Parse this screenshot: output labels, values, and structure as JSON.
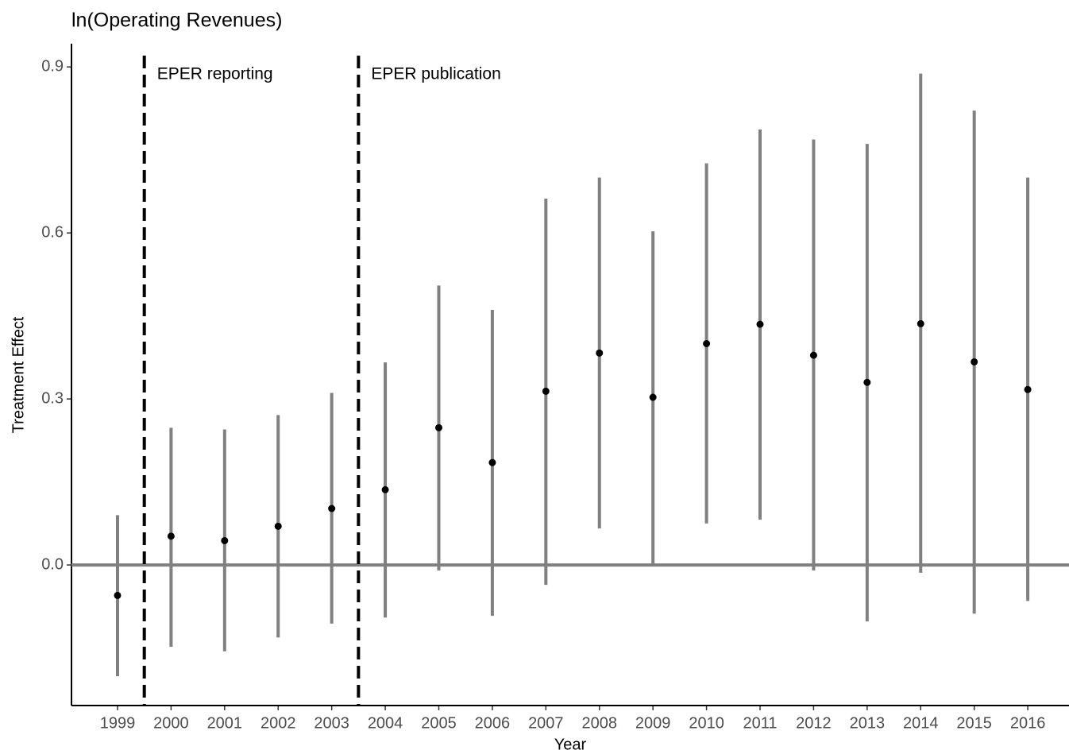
{
  "chart_data": {
    "type": "errorbar",
    "title": "ln(Operating Revenues)",
    "x_label": "Year",
    "y_label": "Treatment Effect",
    "x": [
      1999,
      2000,
      2001,
      2002,
      2003,
      2004,
      2005,
      2006,
      2007,
      2008,
      2009,
      2010,
      2011,
      2012,
      2013,
      2014,
      2015,
      2016
    ],
    "values": [
      -0.055,
      0.052,
      0.044,
      0.07,
      0.102,
      0.136,
      0.248,
      0.185,
      0.314,
      0.383,
      0.303,
      0.4,
      0.435,
      0.379,
      0.33,
      0.436,
      0.367,
      0.317
    ],
    "lower": [
      -0.201,
      -0.148,
      -0.156,
      -0.131,
      -0.106,
      -0.095,
      -0.01,
      -0.092,
      -0.036,
      0.066,
      0.0,
      0.075,
      0.082,
      -0.01,
      -0.102,
      -0.014,
      -0.088,
      -0.065
    ],
    "upper": [
      0.09,
      0.248,
      0.245,
      0.271,
      0.311,
      0.366,
      0.505,
      0.461,
      0.662,
      0.7,
      0.603,
      0.726,
      0.787,
      0.769,
      0.761,
      0.888,
      0.821,
      0.7
    ],
    "color": "#808080",
    "point_color": "#000000",
    "xlim": [
      1998.14,
      2016.77
    ],
    "xticks": [
      1999,
      2000,
      2001,
      2002,
      2003,
      2004,
      2005,
      2006,
      2007,
      2008,
      2009,
      2010,
      2011,
      2012,
      2013,
      2014,
      2015,
      2016
    ],
    "ylim": [
      -0.254,
      0.942
    ],
    "yticks": [
      {
        "value": 0,
        "label": "0.0"
      },
      0.3,
      0.6,
      0.9
    ],
    "hline": 0,
    "vlines": [
      {
        "x": 1999.5,
        "label": "EPER reporting"
      },
      {
        "x": 2003.5,
        "label": "EPER publication"
      }
    ],
    "grid": false
  }
}
